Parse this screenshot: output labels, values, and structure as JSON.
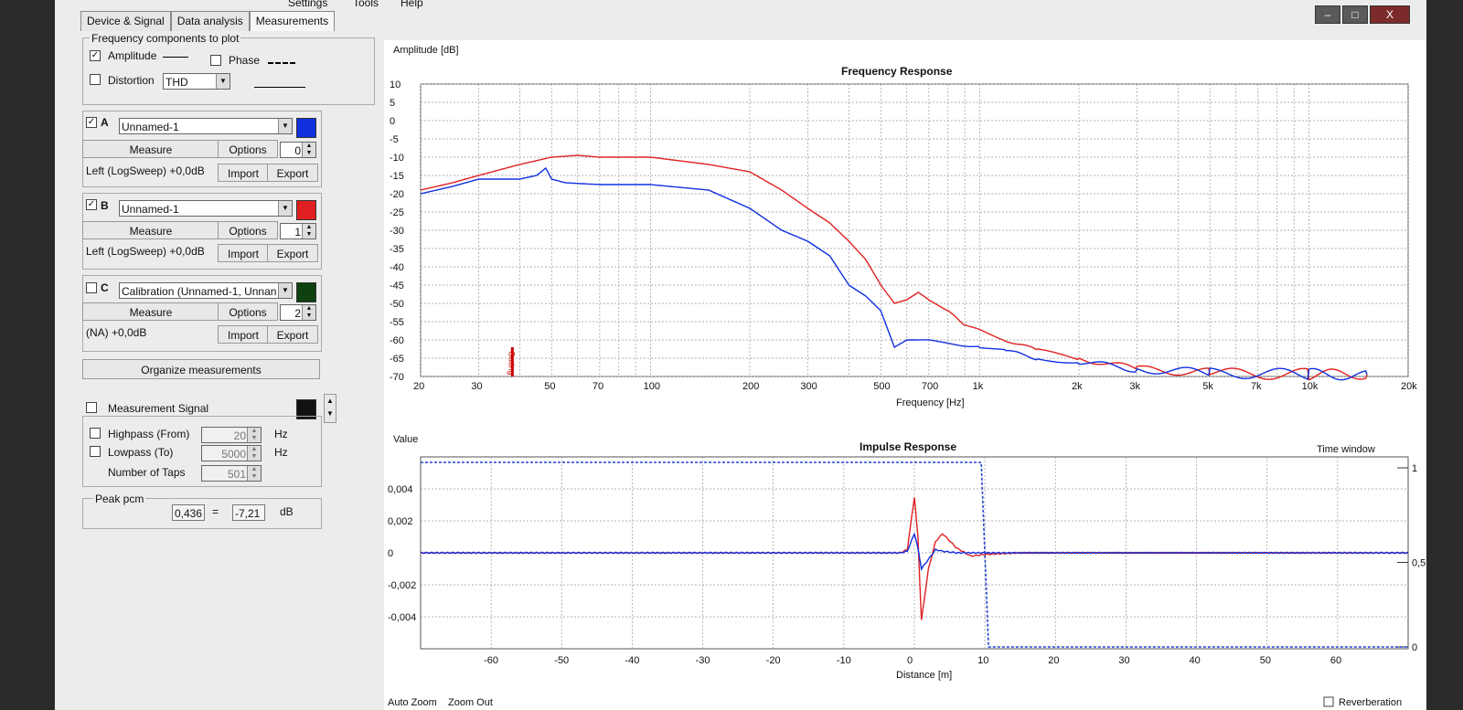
{
  "menu": {
    "settings": "Settings",
    "tools": "Tools",
    "help": "Help"
  },
  "window_controls": [
    "–",
    "□",
    "X"
  ],
  "tabs": [
    "Device & Signal",
    "Data analysis",
    "Measurements"
  ],
  "freq_components": {
    "title": "Frequency components to plot",
    "amplitude": "Amplitude",
    "amplitude_checked": true,
    "phase": "Phase",
    "phase_checked": false,
    "distortion": "Distortion",
    "distortion_checked": false,
    "distortion_value": "THD"
  },
  "measurements": [
    {
      "letter": "A",
      "checked": true,
      "name": "Unnamed-1",
      "color": "#1030e0",
      "measure": "Measure",
      "options": "Options",
      "index": "0",
      "info": "Left (LogSweep) +0,0dB",
      "import": "Import",
      "export": "Export"
    },
    {
      "letter": "B",
      "checked": true,
      "name": "Unnamed-1",
      "color": "#e02020",
      "measure": "Measure",
      "options": "Options",
      "index": "1",
      "info": "Left (LogSweep) +0,0dB",
      "import": "Import",
      "export": "Export"
    },
    {
      "letter": "C",
      "checked": false,
      "name": "Calibration (Unnamed-1, Unnan",
      "color": "#0e4010",
      "measure": "Measure",
      "options": "Options",
      "index": "2",
      "info": "(NA) +0,0dB",
      "import": "Import",
      "export": "Export"
    }
  ],
  "organize": "Organize measurements",
  "signal": {
    "title": "Measurement Signal",
    "highpass": "Highpass (From)",
    "highpass_value": "20",
    "highpass_unit": "Hz",
    "lowpass": "Lowpass (To)",
    "lowpass_value": "5000",
    "lowpass_unit": "Hz",
    "taps": "Number of Taps",
    "taps_value": "501"
  },
  "peak": {
    "title": "Peak pcm",
    "value": "0,436",
    "eq": "=",
    "db": "-7,21",
    "unit": "dB"
  },
  "chart_data": [
    {
      "type": "line",
      "title": "Frequency Response",
      "ylabel": "Amplitude [dB]",
      "xlabel": "Frequency [Hz]",
      "x_scale": "log",
      "xlim": [
        20,
        20000
      ],
      "ylim": [
        -70,
        10
      ],
      "y_ticks": [
        10,
        5,
        0,
        -5,
        -10,
        -15,
        -20,
        -25,
        -30,
        -35,
        -40,
        -45,
        -50,
        -55,
        -60,
        -65,
        -70
      ],
      "x_tick_labels": [
        "20",
        "30",
        "50",
        "70",
        "100",
        "200",
        "300",
        "500",
        "700",
        "1k",
        "2k",
        "3k",
        "5k",
        "7k",
        "10k",
        "20k"
      ],
      "x_tick_values": [
        20,
        30,
        50,
        70,
        100,
        200,
        300,
        500,
        700,
        1000,
        2000,
        3000,
        5000,
        7000,
        10000,
        20000
      ],
      "marker": "Gating",
      "grid": true,
      "series": [
        {
          "color": "#e02020",
          "x": [
            20,
            25,
            30,
            40,
            50,
            60,
            70,
            100,
            150,
            200,
            250,
            300,
            350,
            400,
            450,
            500,
            550,
            600,
            650,
            700,
            800,
            900,
            1000,
            1200,
            1500,
            2000,
            3000,
            5000,
            10000,
            15000
          ],
          "y": [
            -19,
            -17,
            -15,
            -12,
            -10,
            -9.5,
            -10,
            -10,
            -12,
            -14,
            -19,
            -24,
            -28,
            -33,
            -38,
            -45,
            -50,
            -49,
            -47,
            -49,
            -52,
            -56,
            -57,
            -60,
            -63,
            -65,
            -68,
            -69,
            -69.5,
            -69.5
          ]
        },
        {
          "color": "#1030e0",
          "x": [
            20,
            25,
            30,
            40,
            45,
            48,
            50,
            55,
            70,
            100,
            150,
            200,
            250,
            300,
            350,
            400,
            450,
            500,
            550,
            600,
            700,
            800,
            1000,
            1200,
            1500,
            2000,
            3000,
            5000,
            10000,
            15000
          ],
          "y": [
            -20,
            -18,
            -16,
            -16,
            -15,
            -13,
            -16,
            -17,
            -17.5,
            -17.5,
            -19,
            -24,
            -30,
            -33,
            -37,
            -45,
            -48,
            -52,
            -62,
            -60,
            -60,
            -61,
            -62,
            -63,
            -65,
            -66,
            -68,
            -69,
            -69.5,
            -69.5
          ]
        }
      ]
    },
    {
      "type": "line",
      "title": "Impulse Response",
      "ylabel": "Value",
      "xlabel": "Distance [m]",
      "xlim": [
        -70,
        70
      ],
      "ylim": [
        -0.006,
        0.006
      ],
      "x_ticks": [
        -60,
        -50,
        -40,
        -30,
        -20,
        -10,
        0,
        10,
        20,
        30,
        40,
        50,
        60
      ],
      "y_ticks": [
        0.004,
        0.002,
        0,
        -0.002,
        -0.004
      ],
      "y_tick_labels": [
        "0,004",
        "0,002",
        "0",
        "-0,002",
        "-0,004"
      ],
      "right_axis_label": "Time window",
      "right_ticks": [
        "1",
        "0,5",
        "0"
      ],
      "time_window_end_m": 10,
      "grid": true,
      "series": [
        {
          "color": "#e02020",
          "x": [
            -70,
            -2,
            -1,
            0,
            0.5,
            1,
            2,
            3,
            4,
            6,
            8,
            10,
            15,
            20,
            70
          ],
          "y": [
            0,
            0,
            0.0002,
            0.0035,
            0.001,
            -0.0042,
            -0.001,
            0.0007,
            0.0012,
            0.0003,
            -0.0002,
            -0.0001,
            0,
            0,
            0
          ]
        },
        {
          "color": "#1030e0",
          "x": [
            -70,
            -2,
            -1,
            0,
            0.5,
            1,
            2,
            3,
            4,
            6,
            10,
            70
          ],
          "y": [
            0,
            0,
            0.0001,
            0.0012,
            0.0003,
            -0.001,
            -0.0004,
            0.0002,
            0.0001,
            0,
            0,
            0
          ]
        }
      ]
    }
  ],
  "bottom_buttons": {
    "auto_zoom": "Auto Zoom",
    "zoom_out": "Zoom Out"
  },
  "bottom_right": {
    "label": "Reverberation",
    "checked": false
  }
}
